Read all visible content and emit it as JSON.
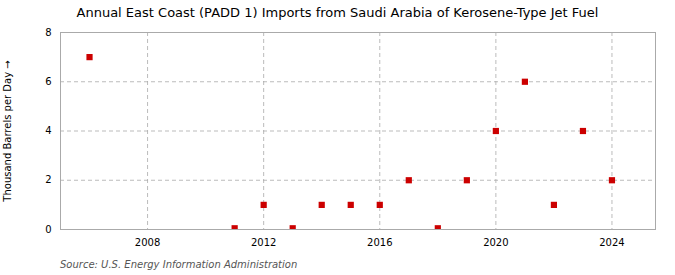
{
  "chart_data": {
    "type": "scatter",
    "title": "Annual East Coast (PADD 1) Imports from Saudi Arabia of Kerosene-Type Jet Fuel",
    "ylabel": "Thousand Barrels per Day",
    "annotations": [
      "Source: U.S. Energy Information Administration"
    ],
    "x": [
      2006,
      2011,
      2012,
      2013,
      2014,
      2015,
      2016,
      2017,
      2018,
      2019,
      2020,
      2021,
      2022,
      2023,
      2024
    ],
    "values": [
      7.0,
      0.05,
      1.0,
      0.05,
      1.0,
      1.0,
      1.0,
      2.0,
      0.05,
      2.0,
      4.0,
      6.0,
      1.0,
      4.0,
      2.0
    ],
    "color": "#cc0000",
    "marker": "square",
    "xlim": [
      2005.0,
      2025.5
    ],
    "xticks": [
      2008,
      2012,
      2016,
      2020,
      2024
    ],
    "ylim": [
      0,
      8
    ],
    "yticks": [
      0,
      2,
      4,
      6,
      8
    ],
    "grid": true
  }
}
